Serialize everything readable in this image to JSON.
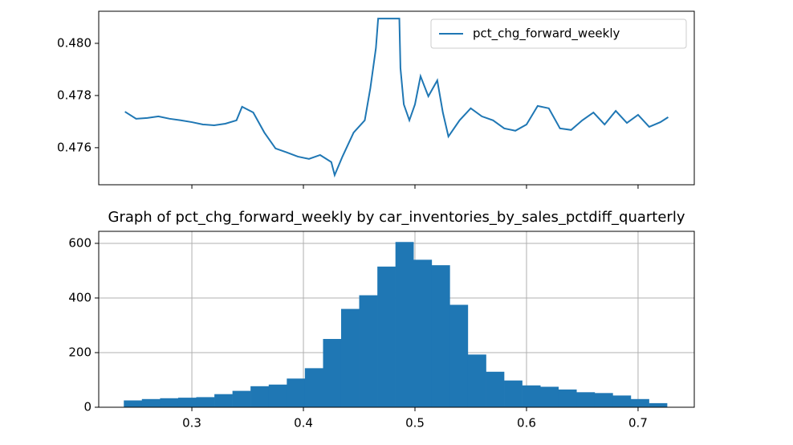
{
  "chart_data": [
    {
      "type": "line",
      "x": [
        0.24,
        0.25,
        0.26,
        0.27,
        0.28,
        0.29,
        0.3,
        0.31,
        0.32,
        0.33,
        0.34,
        0.345,
        0.355,
        0.365,
        0.375,
        0.385,
        0.395,
        0.405,
        0.415,
        0.425,
        0.428,
        0.435,
        0.445,
        0.455,
        0.46,
        0.465,
        0.467,
        0.475,
        0.486,
        0.487,
        0.49,
        0.495,
        0.5,
        0.505,
        0.512,
        0.52,
        0.525,
        0.53,
        0.54,
        0.55,
        0.56,
        0.57,
        0.58,
        0.59,
        0.6,
        0.61,
        0.62,
        0.63,
        0.64,
        0.65,
        0.66,
        0.67,
        0.68,
        0.69,
        0.7,
        0.71,
        0.72,
        0.727
      ],
      "series": [
        {
          "name": "pct_chg_forward_weekly",
          "color": "#1f77b4",
          "values": [
            0.47738,
            0.47711,
            0.47714,
            0.4772,
            0.47711,
            0.47705,
            0.47698,
            0.47689,
            0.47686,
            0.47692,
            0.47705,
            0.47757,
            0.47735,
            0.47658,
            0.47597,
            0.47582,
            0.47566,
            0.47557,
            0.47572,
            0.47545,
            0.47495,
            0.47566,
            0.47658,
            0.47705,
            0.47828,
            0.47982,
            0.48095,
            0.48095,
            0.48095,
            0.47905,
            0.47766,
            0.47705,
            0.47766,
            0.47874,
            0.47797,
            0.47858,
            0.47735,
            0.47643,
            0.47705,
            0.47751,
            0.4772,
            0.47705,
            0.47674,
            0.47665,
            0.47689,
            0.4776,
            0.47751,
            0.47674,
            0.47668,
            0.47705,
            0.47735,
            0.47689,
            0.47741,
            0.47695,
            0.47726,
            0.4768,
            0.47698,
            0.47717
          ]
        }
      ],
      "xlim": [
        0.2165,
        0.7504
      ],
      "xticks": [
        0.3,
        0.4,
        0.5,
        0.6,
        0.7
      ],
      "ylim": [
        0.47458,
        0.48123
      ],
      "yticks": [
        0.476,
        0.478,
        {
          "value": 0.48,
          "label": "0.480"
        }
      ],
      "grid": false,
      "legend": "upper right"
    },
    {
      "type": "histogram",
      "title": "Graph of pct_chg_forward_weekly by car_inventories_by_sales_pctdiff_quarterly",
      "bins": [
        0.239,
        0.2552,
        0.2715,
        0.2877,
        0.3039,
        0.3202,
        0.3364,
        0.3526,
        0.3689,
        0.3851,
        0.4013,
        0.4176,
        0.4338,
        0.45,
        0.4663,
        0.4825,
        0.4987,
        0.515,
        0.5312,
        0.5474,
        0.5637,
        0.5799,
        0.5961,
        0.6124,
        0.6286,
        0.6448,
        0.6611,
        0.6773,
        0.6935,
        0.7098,
        0.726
      ],
      "values": [
        25,
        30,
        33,
        35,
        37,
        48,
        60,
        77,
        83,
        105,
        143,
        250,
        360,
        410,
        515,
        605,
        540,
        520,
        375,
        193,
        130,
        98,
        80,
        75,
        65,
        55,
        52,
        43,
        30,
        15
      ],
      "color": "#1f77b4",
      "xlim": [
        0.2165,
        0.7504
      ],
      "xticks": [
        0.3,
        0.4,
        0.5,
        0.6,
        0.7
      ],
      "ylim": [
        0,
        644
      ],
      "yticks": [
        0,
        200,
        400,
        600
      ],
      "grid": true
    }
  ]
}
